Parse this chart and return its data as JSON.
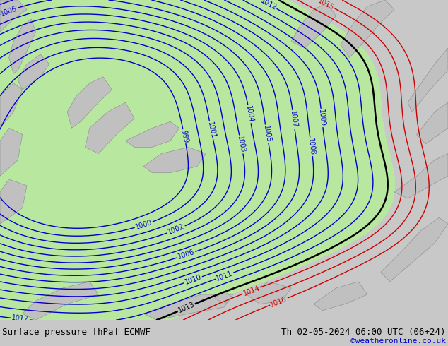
{
  "title_left": "Surface pressure [hPa] ECMWF",
  "title_right": "Th 02-05-2024 06:00 UTC (06+24)",
  "title_right2": "©weatheronline.co.uk",
  "bg_color": "#c8c8c8",
  "map_bg_color": "#c8c8c8",
  "land_color": "#c0c0c0",
  "low_fill_color": "#b8e8a0",
  "contour_color_blue": "#0000cc",
  "contour_color_black": "#000000",
  "contour_color_red": "#cc0000",
  "bottom_bar_color": "#d0d0d0",
  "figsize": [
    6.34,
    4.9
  ],
  "dpi": 100
}
